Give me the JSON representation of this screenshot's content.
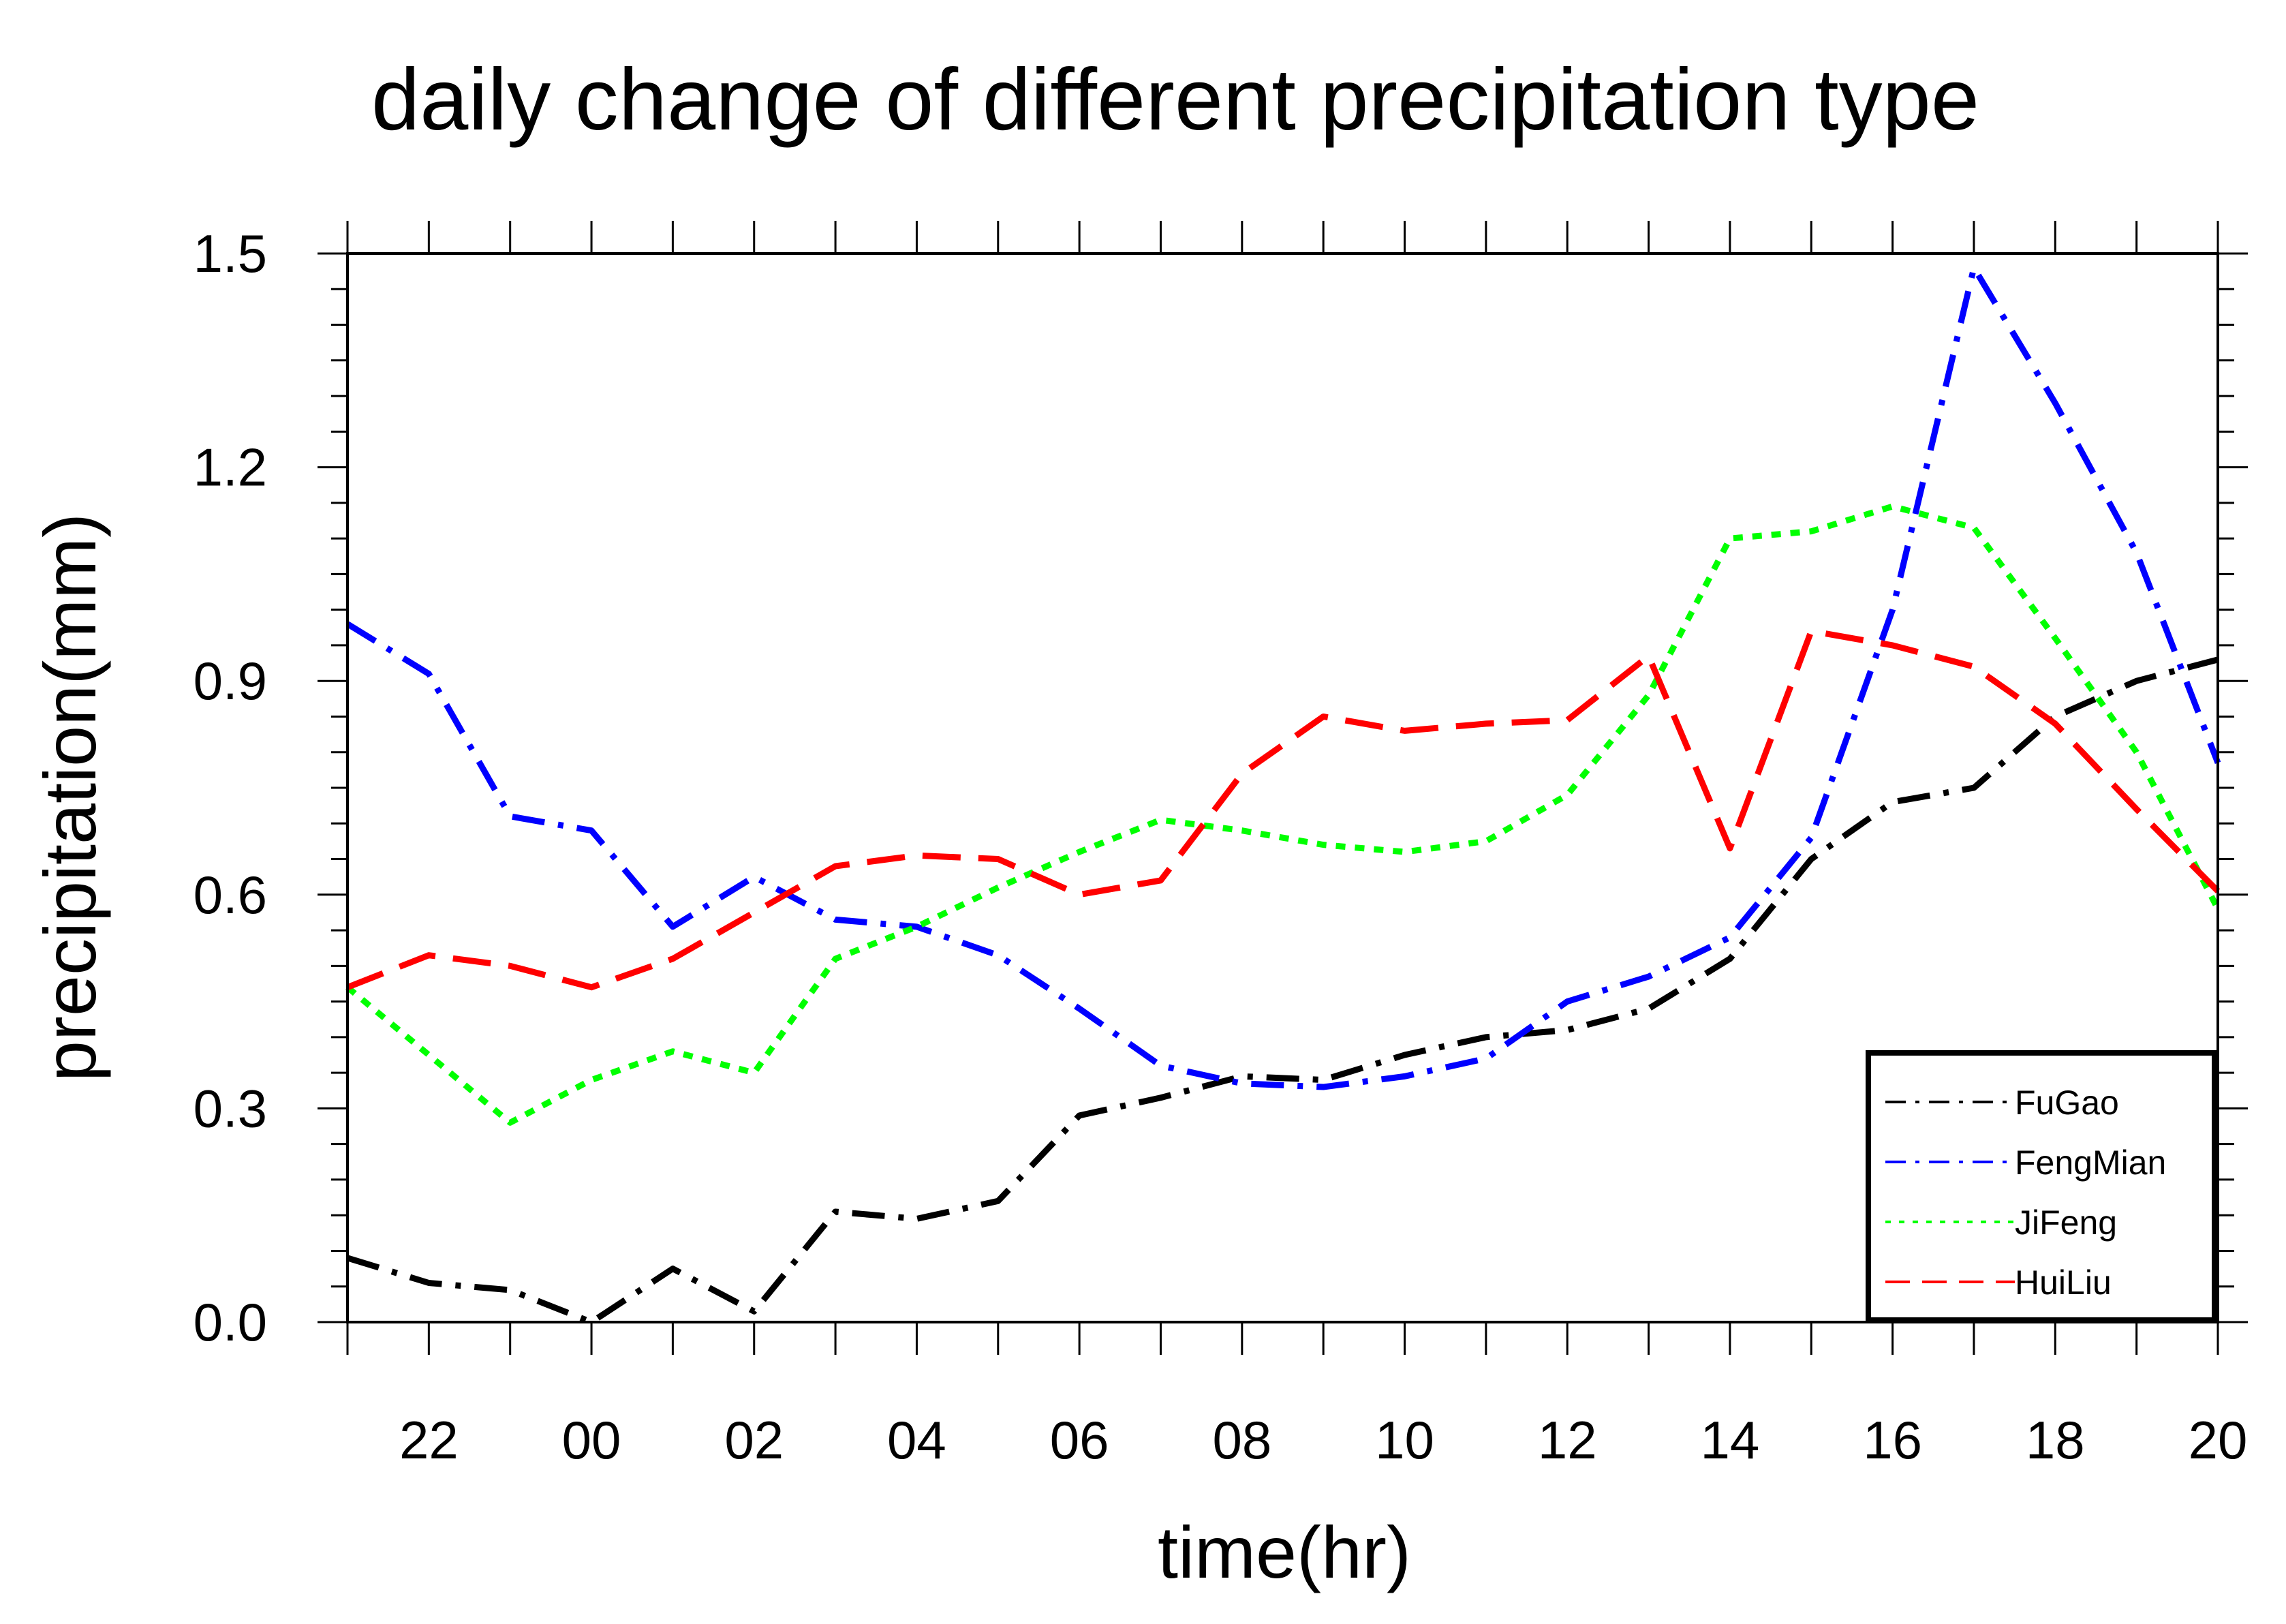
{
  "chart_data": {
    "type": "line",
    "title": "daily change of different precipitation type",
    "xlabel": "time(hr)",
    "ylabel": "precipitation(mm)",
    "x_tick_labels": [
      "22",
      "00",
      "02",
      "04",
      "06",
      "08",
      "10",
      "12",
      "14",
      "16",
      "18",
      "20"
    ],
    "y_tick_labels": [
      "0.0",
      "0.3",
      "0.6",
      "0.9",
      "1.2",
      "1.5"
    ],
    "x": [
      21,
      22,
      23,
      24,
      25,
      26,
      27,
      28,
      29,
      30,
      31,
      32,
      33,
      34,
      35,
      36,
      37,
      38,
      39,
      40,
      41,
      42,
      43,
      44
    ],
    "xlim": [
      21,
      44
    ],
    "ylim": [
      0,
      1.5
    ],
    "series": [
      {
        "name": "FuGao",
        "color": "#000000",
        "dash": "dash-dot",
        "values": [
          0.09,
          0.055,
          0.045,
          0.0,
          0.075,
          0.015,
          0.155,
          0.145,
          0.17,
          0.29,
          0.315,
          0.345,
          0.34,
          0.375,
          0.4,
          0.41,
          0.44,
          0.51,
          0.65,
          0.73,
          0.75,
          0.85,
          0.9,
          0.93
        ]
      },
      {
        "name": "FengMian",
        "color": "#0000ff",
        "dash": "dash-dot",
        "values": [
          0.98,
          0.91,
          0.71,
          0.69,
          0.555,
          0.625,
          0.565,
          0.555,
          0.515,
          0.44,
          0.36,
          0.335,
          0.33,
          0.345,
          0.37,
          0.45,
          0.485,
          0.54,
          0.68,
          1.0,
          1.48,
          1.29,
          1.08,
          0.785
        ]
      },
      {
        "name": "JiFeng",
        "color": "#00ff00",
        "dash": "dotted",
        "values": [
          0.47,
          0.375,
          0.28,
          0.34,
          0.38,
          0.35,
          0.51,
          0.555,
          0.61,
          0.66,
          0.705,
          0.69,
          0.67,
          0.66,
          0.675,
          0.74,
          0.88,
          1.1,
          1.11,
          1.145,
          1.115,
          0.96,
          0.8,
          0.58
        ]
      },
      {
        "name": "HuiLiu",
        "color": "#ff0000",
        "dash": "dashed",
        "values": [
          0.47,
          0.515,
          0.5,
          0.47,
          0.51,
          0.575,
          0.64,
          0.655,
          0.65,
          0.6,
          0.62,
          0.77,
          0.85,
          0.83,
          0.84,
          0.845,
          0.935,
          0.665,
          0.97,
          0.95,
          0.92,
          0.84,
          0.72,
          0.605
        ]
      }
    ],
    "legend": {
      "placement": "bottom-right",
      "entries": [
        "FuGao",
        "FengMian",
        "JiFeng",
        "HuiLiu"
      ]
    }
  }
}
